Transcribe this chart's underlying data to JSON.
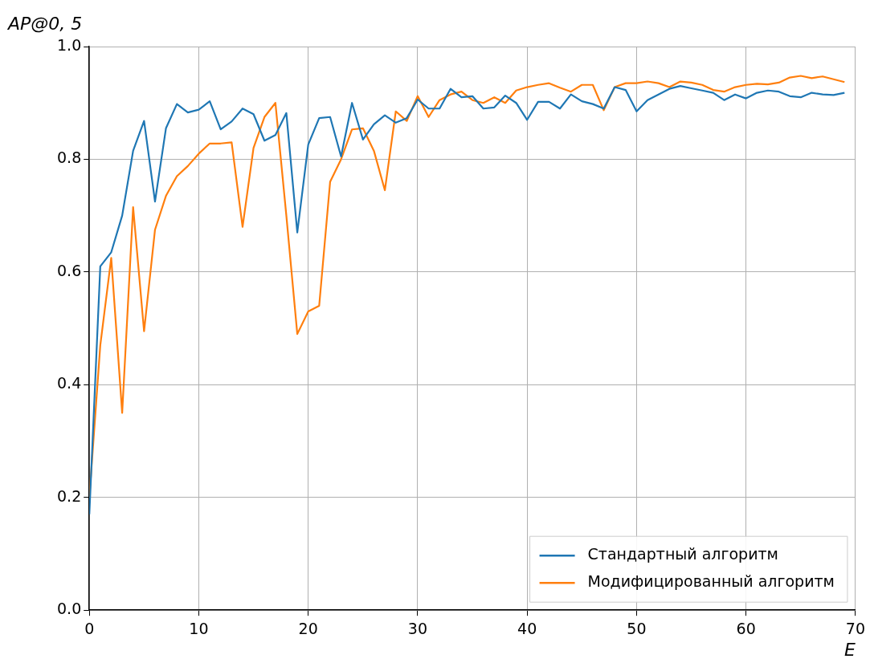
{
  "chart_data": {
    "type": "line",
    "xlabel": "E",
    "ylabel": "AP@0, 5",
    "x": [
      0,
      1,
      2,
      3,
      4,
      5,
      6,
      7,
      8,
      9,
      10,
      11,
      12,
      13,
      14,
      15,
      16,
      17,
      18,
      19,
      20,
      21,
      22,
      23,
      24,
      25,
      26,
      27,
      28,
      29,
      30,
      31,
      32,
      33,
      34,
      35,
      36,
      37,
      38,
      39,
      40,
      41,
      42,
      43,
      44,
      45,
      46,
      47,
      48,
      49,
      50,
      51,
      52,
      53,
      54,
      55,
      56,
      57,
      58,
      59,
      60,
      61,
      62,
      63,
      64,
      65,
      66,
      67,
      68,
      69
    ],
    "series": [
      {
        "name": "Стандартный алгоритм",
        "color": "#1f77b4",
        "values": [
          0.17,
          0.61,
          0.635,
          0.7,
          0.815,
          0.868,
          0.725,
          0.855,
          0.898,
          0.883,
          0.888,
          0.903,
          0.853,
          0.867,
          0.89,
          0.88,
          0.833,
          0.843,
          0.882,
          0.67,
          0.826,
          0.873,
          0.875,
          0.805,
          0.9,
          0.835,
          0.862,
          0.878,
          0.865,
          0.873,
          0.906,
          0.89,
          0.89,
          0.925,
          0.91,
          0.912,
          0.89,
          0.892,
          0.913,
          0.9,
          0.87,
          0.902,
          0.902,
          0.89,
          0.915,
          0.903,
          0.898,
          0.89,
          0.928,
          0.923,
          0.885,
          0.905,
          0.915,
          0.925,
          0.93,
          0.926,
          0.922,
          0.918,
          0.905,
          0.915,
          0.908,
          0.918,
          0.922,
          0.92,
          0.912,
          0.91,
          0.918,
          0.915,
          0.914,
          0.918
        ]
      },
      {
        "name": "Модифицированный алгоритм",
        "color": "#ff7f0e",
        "values": [
          0.2,
          0.47,
          0.625,
          0.35,
          0.715,
          0.495,
          0.675,
          0.735,
          0.77,
          0.788,
          0.81,
          0.828,
          0.828,
          0.83,
          0.68,
          0.82,
          0.875,
          0.9,
          0.7,
          0.49,
          0.53,
          0.54,
          0.76,
          0.8,
          0.853,
          0.855,
          0.815,
          0.745,
          0.885,
          0.868,
          0.912,
          0.875,
          0.905,
          0.915,
          0.92,
          0.905,
          0.9,
          0.91,
          0.9,
          0.922,
          0.928,
          0.932,
          0.935,
          0.927,
          0.92,
          0.932,
          0.932,
          0.887,
          0.928,
          0.935,
          0.935,
          0.938,
          0.935,
          0.928,
          0.938,
          0.936,
          0.932,
          0.923,
          0.92,
          0.928,
          0.932,
          0.934,
          0.933,
          0.936,
          0.945,
          0.948,
          0.944,
          0.947,
          0.942,
          0.937
        ]
      }
    ],
    "xlim": [
      0,
      70
    ],
    "xticks": [
      0,
      10,
      20,
      30,
      40,
      50,
      60,
      70
    ],
    "ylim": [
      0,
      1
    ],
    "yticks": [
      {
        "value": 0,
        "label": "0.0"
      },
      0.2,
      0.4,
      0.6,
      0.8,
      {
        "value": 1,
        "label": "1.0"
      }
    ],
    "grid": true,
    "legend": "bottom right",
    "marker": "none",
    "line_style": "solid"
  }
}
